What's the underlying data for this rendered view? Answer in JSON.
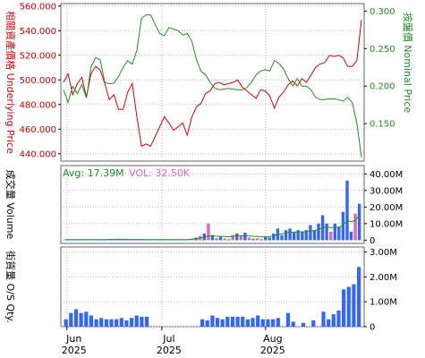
{
  "chart_data": [
    {
      "type": "line",
      "name": "price-panel",
      "left_axis_label": "相關資產價格 Underlying Price",
      "right_axis_label": "按盤價 Nominal Price",
      "left_ylim": [
        434,
        562
      ],
      "right_ylim": [
        0.1,
        0.31
      ],
      "left_ticks": [
        "560.000",
        "540.000",
        "520.000",
        "500.000",
        "480.000",
        "460.000",
        "440.000"
      ],
      "left_tick_values": [
        560,
        540,
        520,
        500,
        480,
        460,
        440
      ],
      "right_ticks": [
        "0.300",
        "0.250",
        "0.200",
        "0.150"
      ],
      "right_tick_values": [
        0.3,
        0.25,
        0.2,
        0.15
      ],
      "underlying": [
        498,
        505,
        488,
        497,
        502,
        486,
        505,
        511,
        508,
        497,
        484,
        488,
        476,
        476,
        490,
        497,
        470,
        446,
        448,
        446,
        454,
        462,
        470,
        465,
        459,
        462,
        465,
        455,
        470,
        478,
        481,
        489,
        491,
        497,
        498,
        496,
        497,
        498,
        500,
        494,
        491,
        488,
        485,
        492,
        491,
        487,
        477,
        486,
        490,
        496,
        499,
        495,
        501,
        498,
        504,
        510,
        513,
        514,
        520,
        519,
        520,
        518,
        511,
        511,
        516,
        549
      ],
      "nominal": [
        0.195,
        0.178,
        0.2,
        0.19,
        0.202,
        0.184,
        0.225,
        0.238,
        0.235,
        0.205,
        0.203,
        0.204,
        0.213,
        0.225,
        0.234,
        0.229,
        0.248,
        0.29,
        0.295,
        0.295,
        0.282,
        0.27,
        0.267,
        0.278,
        0.276,
        0.274,
        0.268,
        0.27,
        0.26,
        0.235,
        0.22,
        0.215,
        0.205,
        0.197,
        0.195,
        0.196,
        0.197,
        0.196,
        0.195,
        0.195,
        0.198,
        0.205,
        0.215,
        0.22,
        0.222,
        0.22,
        0.234,
        0.23,
        0.223,
        0.21,
        0.2,
        0.21,
        0.2,
        0.2,
        0.195,
        0.185,
        0.182,
        0.182,
        0.183,
        0.183,
        0.182,
        0.18,
        0.185,
        0.178,
        0.15,
        0.105
      ]
    },
    {
      "type": "bar",
      "name": "volume-panel",
      "axis_label": "成交量 Volume",
      "avg_label": "Avg: 17.39M",
      "vol_label": "VOL: 32.50K",
      "ylim": [
        -2,
        45
      ],
      "ticks": [
        "40.00M",
        "30.00M",
        "20.00M",
        "10.00M",
        "0"
      ],
      "tick_values": [
        40,
        30,
        20,
        10,
        0
      ],
      "up_color": "#3366ff",
      "down_color": "#e066b8",
      "values": [
        0.4,
        0.3,
        0.3,
        0.3,
        0.3,
        0.3,
        0.3,
        0.4,
        0.3,
        0.3,
        0.3,
        0.3,
        0.4,
        0.3,
        0.3,
        0.3,
        0.3,
        0.3,
        0.3,
        0.3,
        0.3,
        0.3,
        0.3,
        0.3,
        0.3,
        0.3,
        0.3,
        0.3,
        0.3,
        0.3,
        0.4,
        0.8,
        1.5,
        2.5,
        4.0,
        10.0,
        3.0,
        1.2,
        2.0,
        1.0,
        0.5,
        3.0,
        4.0,
        2.5,
        4.5,
        1.5,
        0.8,
        1.0,
        0.5,
        2.0,
        1.5,
        4.0,
        7.0,
        3.0,
        6.0,
        7.0,
        5.0,
        6.0,
        5.0,
        6.0,
        9.0,
        6.0,
        10.0,
        15.0,
        10.0,
        5.0,
        10.0,
        8.0,
        17.0,
        36.0,
        5.0,
        16.0,
        22.0
      ],
      "colors": [
        "u",
        "u",
        "u",
        "u",
        "u",
        "u",
        "u",
        "u",
        "u",
        "u",
        "u",
        "u",
        "u",
        "u",
        "u",
        "u",
        "u",
        "u",
        "u",
        "u",
        "u",
        "u",
        "u",
        "u",
        "u",
        "u",
        "u",
        "u",
        "u",
        "u",
        "u",
        "d",
        "u",
        "d",
        "u",
        "d",
        "u",
        "d",
        "u",
        "d",
        "u",
        "d",
        "u",
        "d",
        "u",
        "d",
        "u",
        "d",
        "u",
        "u",
        "u",
        "u",
        "u",
        "u",
        "u",
        "u",
        "u",
        "u",
        "u",
        "u",
        "u",
        "u",
        "u",
        "u",
        "u",
        "d",
        "u",
        "u",
        "u",
        "u",
        "u",
        "d",
        "u"
      ],
      "avg_line": [
        0.3,
        0.3,
        0.3,
        0.3,
        0.3,
        0.3,
        0.3,
        0.3,
        0.3,
        0.3,
        0.4,
        0.4,
        0.5,
        0.5,
        0.5,
        0.5,
        0.4,
        0.4,
        0.4,
        0.4,
        0.3,
        0.3,
        0.3,
        0.3,
        0.3,
        0.3,
        0.3,
        0.3,
        0.3,
        0.3,
        0.4,
        0.6,
        0.9,
        1.3,
        1.8,
        2.5,
        2.6,
        2.4,
        2.3,
        2.2,
        2.0,
        2.3,
        2.6,
        2.6,
        2.7,
        2.5,
        2.3,
        2.2,
        2.0,
        2.0,
        2.1,
        2.6,
        3.5,
        3.8,
        4.2,
        4.6,
        4.8,
        5.0,
        5.0,
        5.2,
        5.6,
        5.8,
        6.5,
        7.5,
        8.0,
        7.5,
        7.8,
        7.9,
        9.0,
        12.0,
        11.0,
        12.0,
        15.0
      ]
    },
    {
      "type": "bar",
      "name": "os-qty-panel",
      "axis_label": "街貨量 O/S Qty.",
      "ylim": [
        0,
        3.2
      ],
      "ticks": [
        "3.00M",
        "2.00M",
        "1.00M",
        "0"
      ],
      "tick_values": [
        3,
        2,
        1,
        0
      ],
      "bar_color": "#3366ff",
      "values": [
        0.3,
        0.55,
        0.7,
        0.55,
        0.6,
        0.45,
        0.3,
        0.35,
        0.3,
        0.3,
        0.3,
        0.35,
        0.25,
        0.35,
        0.45,
        0.4,
        0.4,
        0,
        0,
        0,
        0,
        0,
        0,
        0,
        0,
        0,
        0,
        0.3,
        0.25,
        0.45,
        0.35,
        0.3,
        0.4,
        0.4,
        0.4,
        0.4,
        0.3,
        0.35,
        0.45,
        0.3,
        0.3,
        0.3,
        0.35,
        0,
        0.55,
        0.2,
        0,
        0.15,
        0,
        0.25,
        0,
        0.6,
        0.3,
        0.5,
        0.65,
        1.5,
        1.6,
        1.7,
        2.4
      ]
    }
  ],
  "x_axis": {
    "labels": [
      {
        "month": "Jun",
        "year": "2025",
        "frac": 0.02
      },
      {
        "month": "Jul",
        "year": "2025",
        "frac": 0.333
      },
      {
        "month": "Aug",
        "year": "2025",
        "frac": 0.675
      }
    ]
  }
}
